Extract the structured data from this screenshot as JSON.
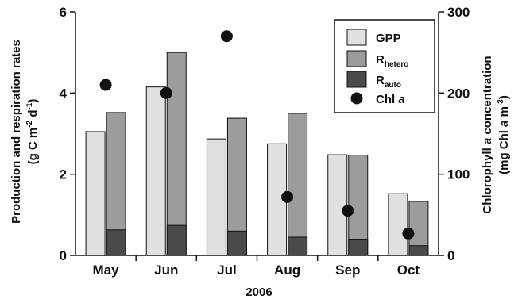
{
  "chart_data": {
    "type": "bar",
    "categories": [
      "May",
      "Jun",
      "Jul",
      "Aug",
      "Sep",
      "Oct"
    ],
    "xlabel": "2006",
    "ylabel_left": {
      "line1": "Production and respiration rates",
      "line2_prefix": "(g C m",
      "line2_sup1": "-2",
      "line2_mid": " d",
      "line2_sup2": "-1",
      "line2_suffix": ")"
    },
    "ylabel_right": {
      "line1_prefix": "Chlorophyll ",
      "line1_italic": "a",
      "line1_suffix": " concentration",
      "line2_prefix": "(mg Chl ",
      "line2_italic": "a",
      "line2_mid": " m",
      "line2_sup": "-3",
      "line2_suffix": ")"
    },
    "ylim_left": [
      0,
      6
    ],
    "yticks_left": [
      "0",
      "2",
      "4",
      "6"
    ],
    "ylim_right": [
      0,
      300
    ],
    "yticks_right": [
      "0",
      "100",
      "200",
      "300"
    ],
    "series": [
      {
        "name": "GPP",
        "values": [
          3.05,
          4.15,
          2.87,
          2.75,
          2.48,
          1.52
        ],
        "color": "#e0e0e0"
      },
      {
        "name": "R_hetero",
        "values": [
          3.52,
          5.0,
          3.38,
          3.5,
          2.47,
          1.33
        ],
        "color": "#9c9c9c"
      },
      {
        "name": "R_auto",
        "values": [
          0.63,
          0.74,
          0.6,
          0.45,
          0.4,
          0.24
        ],
        "color": "#4a4a4a"
      },
      {
        "name": "Chl a",
        "values": [
          210,
          200,
          270,
          72,
          55,
          27
        ],
        "color": "#111111",
        "axis": "right"
      }
    ],
    "legend": {
      "position": "top-right",
      "entries": [
        {
          "text": "GPP",
          "sub": ""
        },
        {
          "text": "R",
          "sub": "hetero"
        },
        {
          "text": "R",
          "sub": "auto"
        },
        {
          "text": "Chl ",
          "italic": "a"
        }
      ]
    }
  }
}
